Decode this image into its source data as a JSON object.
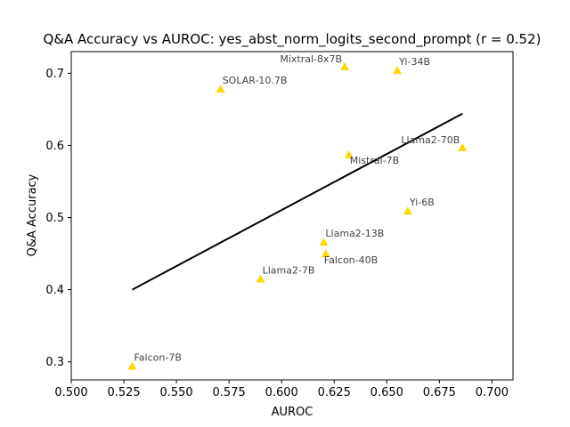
{
  "chart_data": {
    "type": "scatter",
    "title": "Q&A Accuracy vs AUROC: yes_abst_norm_logits_second_prompt (r = 0.52)",
    "xlabel": "AUROC",
    "ylabel": "Q&A Accuracy",
    "xlim": [
      0.5,
      0.71
    ],
    "ylim": [
      0.275,
      0.73
    ],
    "xticks": [
      "0.500",
      "0.525",
      "0.550",
      "0.575",
      "0.600",
      "0.625",
      "0.650",
      "0.675",
      "0.700"
    ],
    "yticks": [
      "0.3",
      "0.4",
      "0.5",
      "0.6",
      "0.7"
    ],
    "grid": false,
    "marker_color": "#FFD700",
    "points": [
      {
        "label": "Mixtral-8x7B",
        "x": 0.63,
        "y": 0.709
      },
      {
        "label": "Yi-34B",
        "x": 0.655,
        "y": 0.704
      },
      {
        "label": "SOLAR-10.7B",
        "x": 0.571,
        "y": 0.678
      },
      {
        "label": "Llama2-70B",
        "x": 0.686,
        "y": 0.597
      },
      {
        "label": "Mistral-7B",
        "x": 0.632,
        "y": 0.587
      },
      {
        "label": "Yi-6B",
        "x": 0.66,
        "y": 0.509
      },
      {
        "label": "Llama2-13B",
        "x": 0.62,
        "y": 0.466
      },
      {
        "label": "Falcon-40B",
        "x": 0.621,
        "y": 0.45
      },
      {
        "label": "Llama2-7B",
        "x": 0.59,
        "y": 0.415
      },
      {
        "label": "Falcon-7B",
        "x": 0.529,
        "y": 0.294
      }
    ],
    "trendline": {
      "x": [
        0.529,
        0.686
      ],
      "y": [
        0.4,
        0.644
      ],
      "color": "#000000"
    }
  }
}
